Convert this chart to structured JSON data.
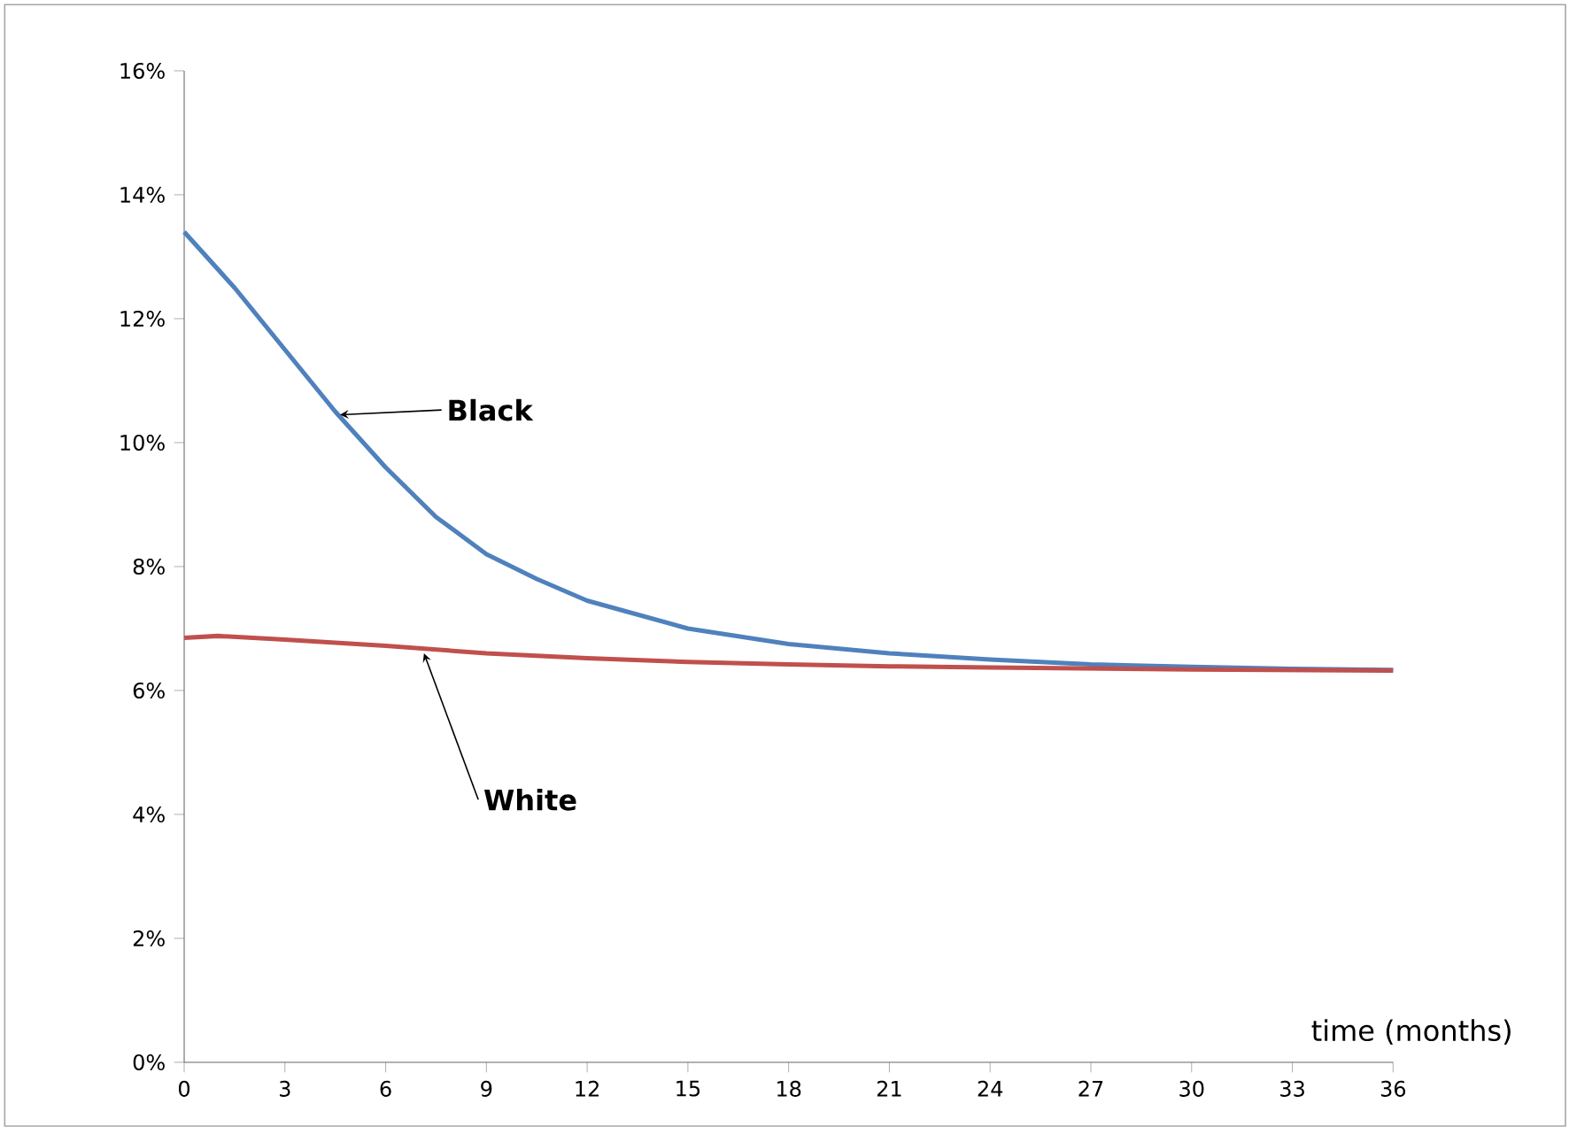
{
  "chart_data": {
    "type": "line",
    "xlabel": "time (months)",
    "xlim": [
      0,
      36
    ],
    "xticks": [
      0,
      3,
      6,
      9,
      12,
      15,
      18,
      21,
      24,
      27,
      30,
      33,
      36
    ],
    "ylim": [
      0,
      16
    ],
    "yticks": [
      {
        "value": 0,
        "label": "0%"
      },
      {
        "value": 2,
        "label": "2%"
      },
      {
        "value": 4,
        "label": "4%"
      },
      {
        "value": 6,
        "label": "6%"
      },
      {
        "value": 8,
        "label": "8%"
      },
      {
        "value": 10,
        "label": "10%"
      },
      {
        "value": 12,
        "label": "12%"
      },
      {
        "value": 14,
        "label": "14%"
      },
      {
        "value": 16,
        "label": "16%"
      }
    ],
    "marker": "none",
    "line_style": "solid",
    "series": [
      {
        "color": "#4f81bd",
        "x": [
          0,
          1.5,
          3,
          4.5,
          6,
          7.5,
          9,
          10.5,
          12,
          15,
          18,
          21,
          24,
          27,
          30,
          33,
          36
        ],
        "values": [
          13.4,
          12.5,
          11.5,
          10.5,
          9.6,
          8.8,
          8.2,
          7.8,
          7.45,
          7.0,
          6.75,
          6.6,
          6.5,
          6.42,
          6.38,
          6.35,
          6.33
        ]
      },
      {
        "color": "#c0504d",
        "x": [
          0,
          1,
          3,
          6,
          9,
          12,
          15,
          18,
          21,
          24,
          30,
          36
        ],
        "values": [
          6.85,
          6.88,
          6.82,
          6.72,
          6.6,
          6.52,
          6.46,
          6.42,
          6.39,
          6.37,
          6.34,
          6.32
        ]
      }
    ],
    "annotations": [
      {
        "text": "Black",
        "x": 4.5,
        "y": 10.45
      },
      {
        "text": "White",
        "x": 7,
        "y": 6.6
      }
    ]
  }
}
